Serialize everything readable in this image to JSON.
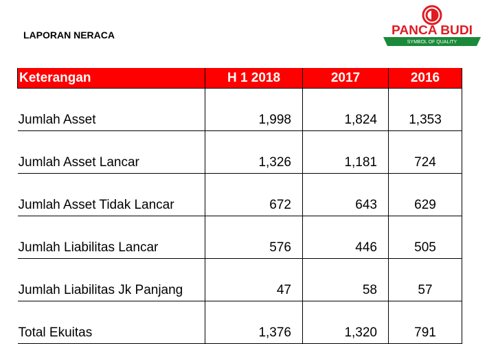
{
  "header": {
    "title": "LAPORAN NERACA",
    "logo": {
      "name": "PANCA BUDI",
      "tagline": "SYMBOL OF QUALITY"
    }
  },
  "table": {
    "columns": [
      "Keterangan",
      "H 1 2018",
      "2017",
      "2016"
    ],
    "rows": [
      [
        "Jumlah Asset",
        "1,998",
        "1,824",
        "1,353"
      ],
      [
        "Jumlah Asset Lancar",
        "1,326",
        "1,181",
        "724"
      ],
      [
        "Jumlah Asset Tidak Lancar",
        "672",
        "643",
        "629"
      ],
      [
        "Jumlah Liabilitas Lancar",
        "576",
        "446",
        "505"
      ],
      [
        "Jumlah Liabilitas Jk Panjang",
        "47",
        "58",
        "57"
      ],
      [
        "Total Ekuitas",
        "1,376",
        "1,320",
        "791"
      ]
    ]
  }
}
